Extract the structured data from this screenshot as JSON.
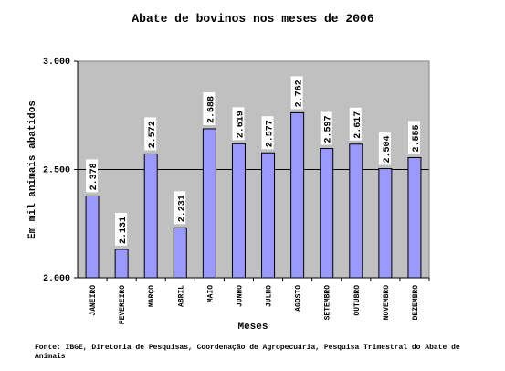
{
  "chart_data": {
    "type": "bar",
    "title": "Abate de bovinos  nos meses de 2006",
    "y_label": "Em mil animais abatidos",
    "x_label": "Meses",
    "source": "Fonte: IBGE, Diretoria de Pesquisas, Coordenação de Agropecuária, Pesquisa Trimestral do Abate de Animais",
    "categories": [
      "JANEIRO",
      "FEVEREIRO",
      "MARÇO",
      "ABRIL",
      "MAIO",
      "JUNHO",
      "JULHO",
      "AGOSTO",
      "SETEMBRO",
      "OUTUBRO",
      "NOVEMBRO",
      "DEZEMBRO"
    ],
    "values": [
      2378,
      2131,
      2572,
      2231,
      2688,
      2619,
      2577,
      2762,
      2597,
      2617,
      2504,
      2555
    ],
    "value_labels": [
      "2.378",
      "2.131",
      "2.572",
      "2.231",
      "2.688",
      "2.619",
      "2.577",
      "2.762",
      "2.597",
      "2.617",
      "2.504",
      "2.555"
    ],
    "color": "#9999ff",
    "ylim": [
      2000,
      3000
    ],
    "yticks": [
      {
        "value": 2000,
        "label": "2.000"
      },
      {
        "value": 2500,
        "label": "2.500"
      },
      {
        "value": 3000,
        "label": "3.000"
      }
    ],
    "grid": true
  }
}
